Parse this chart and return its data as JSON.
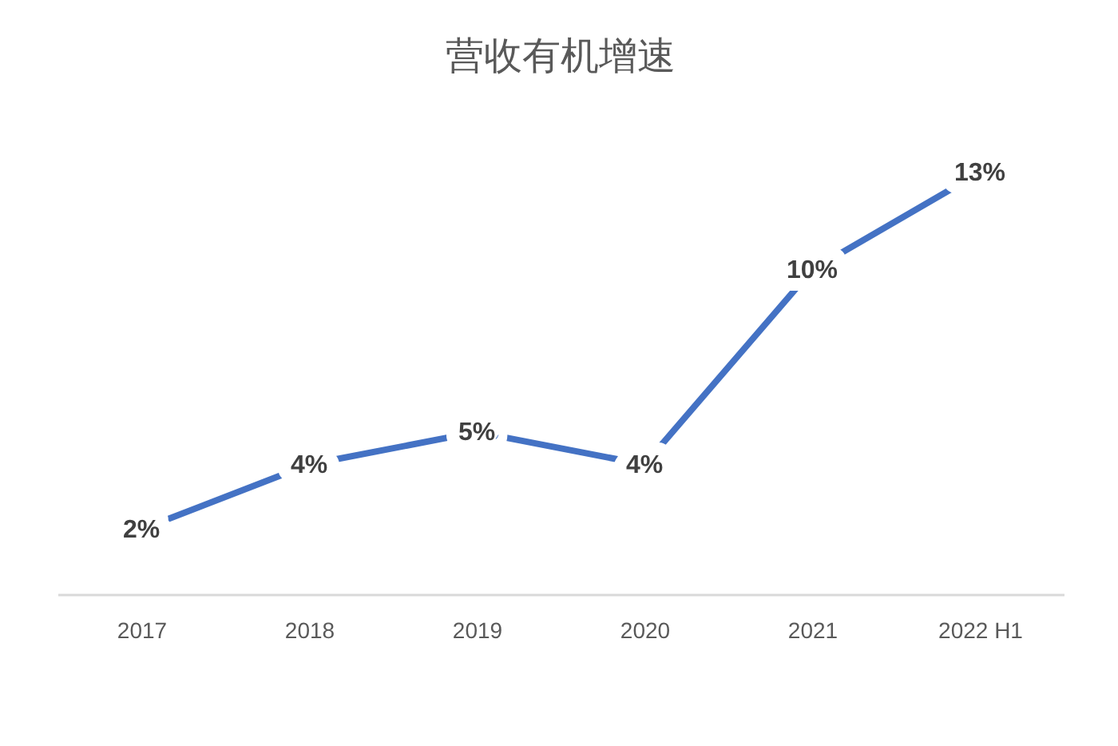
{
  "chart_data": {
    "type": "line",
    "title": "营收有机增速",
    "categories": [
      "2017",
      "2018",
      "2019",
      "2020",
      "2021",
      "2022 H1"
    ],
    "series": [
      {
        "color": "#4472c4",
        "values": [
          2,
          4,
          5,
          4,
          10,
          13
        ],
        "value_labels": [
          "2%",
          "4%",
          "5%",
          "4%",
          "10%",
          "13%"
        ]
      }
    ],
    "tick_labels": "x",
    "line_style": "solid"
  }
}
